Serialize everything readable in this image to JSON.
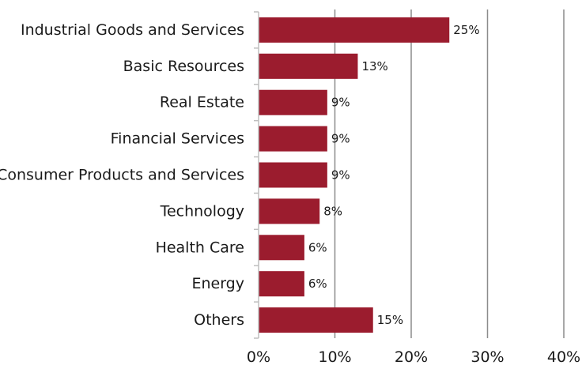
{
  "chart_data": {
    "type": "bar",
    "orientation": "horizontal",
    "categories": [
      "Industrial Goods and Services",
      "Basic Resources",
      "Real Estate",
      "Financial Services",
      "Consumer Products and Services",
      "Technology",
      "Health Care",
      "Energy",
      "Others"
    ],
    "values": [
      25,
      13,
      9,
      9,
      9,
      8,
      6,
      6,
      15
    ],
    "data_labels": [
      "25%",
      "13%",
      "9%",
      "9%",
      "9%",
      "8%",
      "6%",
      "6%",
      "15%"
    ],
    "xlim": [
      0,
      40
    ],
    "x_ticks": [
      0,
      10,
      20,
      30,
      40
    ],
    "x_tick_labels": [
      "0%",
      "10%",
      "20%",
      "30%",
      "40%"
    ],
    "grid": "vertical",
    "legend": "none",
    "colors": {
      "bar": "#9b1c2e",
      "grid": "#8c8c8c",
      "axis": "#bfbfbf"
    }
  }
}
